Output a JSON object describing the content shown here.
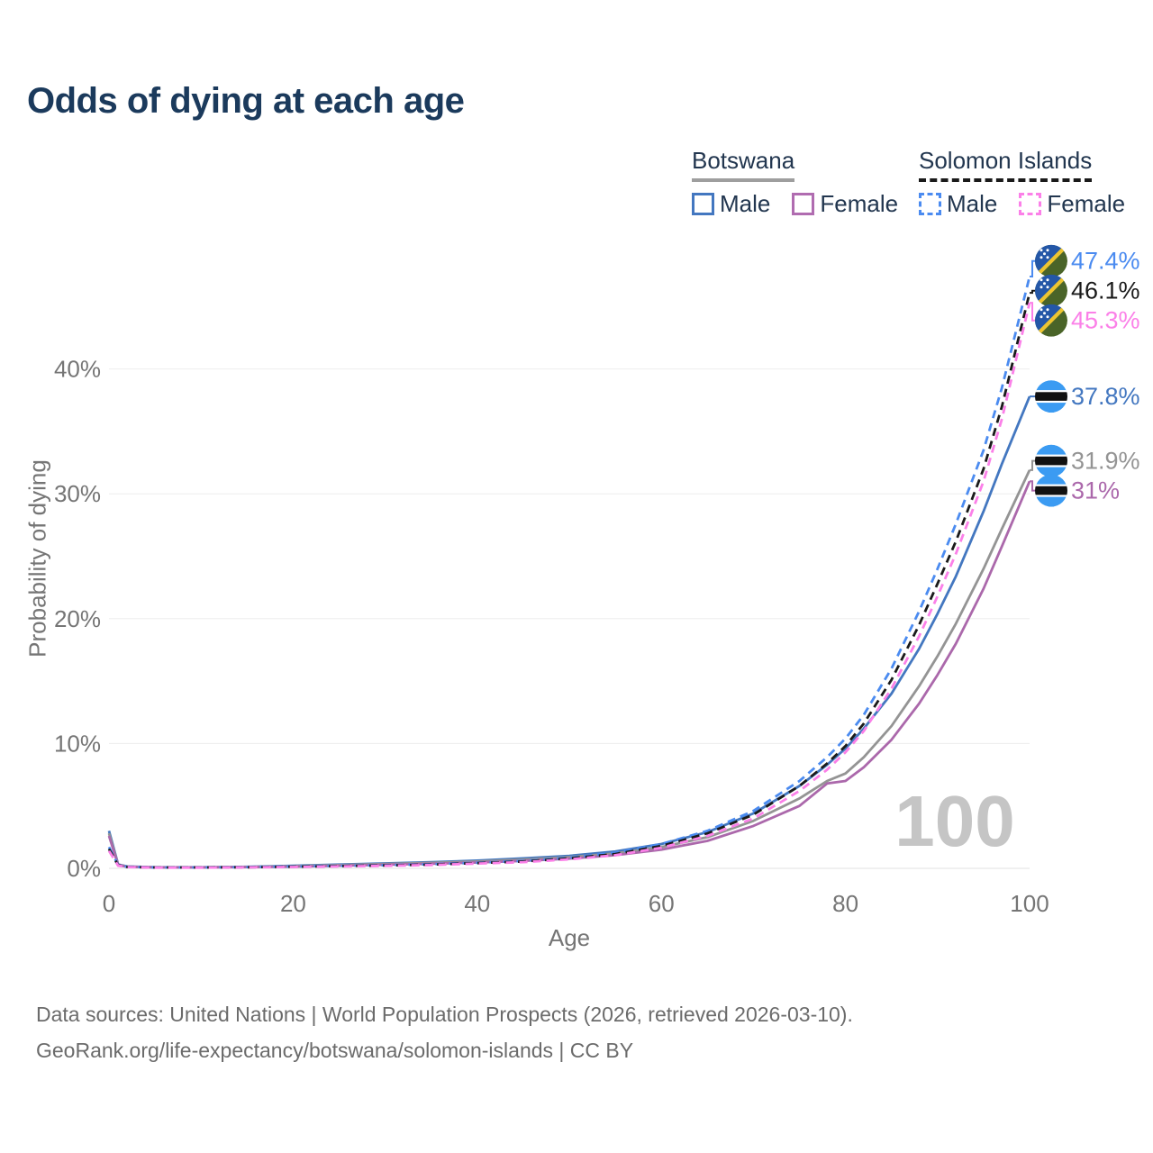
{
  "title": "Odds of dying at each age",
  "legend": {
    "groups": [
      {
        "name": "Botswana",
        "line_style": "solid",
        "underline_color": "#9e9e9e",
        "items": [
          {
            "label": "Male",
            "color": "#4377c0"
          },
          {
            "label": "Female",
            "color": "#b06cb0"
          }
        ]
      },
      {
        "name": "Solomon Islands",
        "line_style": "dashed",
        "underline_color": "#1a1a1a",
        "items": [
          {
            "label": "Male",
            "color": "#4b8bf0"
          },
          {
            "label": "Female",
            "color": "#fb80e8"
          }
        ]
      }
    ]
  },
  "chart_data": {
    "type": "line",
    "title": "Odds of dying at each age",
    "xlabel": "Age",
    "ylabel": "Probability of dying",
    "xlim": [
      0,
      100
    ],
    "ylim": [
      0,
      48
    ],
    "grid": "horizontal",
    "legend_position": "top-right",
    "watermark": "100",
    "x_tick_values": [
      0,
      20,
      40,
      60,
      80,
      100
    ],
    "x_tick_labels": [
      "0",
      "20",
      "40",
      "60",
      "80",
      "100"
    ],
    "y_tick_values": [
      0,
      10,
      20,
      30,
      40
    ],
    "y_tick_labels": [
      "0%",
      "10%",
      "20%",
      "30%",
      "40%"
    ],
    "x": [
      0,
      1,
      2,
      5,
      10,
      15,
      20,
      25,
      30,
      35,
      40,
      45,
      50,
      55,
      60,
      65,
      70,
      75,
      78,
      80,
      82,
      85,
      88,
      90,
      92,
      95,
      97,
      100
    ],
    "series": [
      {
        "id": "botswana-male",
        "country": "Botswana",
        "sex": "Male",
        "color": "#4377c0",
        "line_style": "solid",
        "flag": "botswana",
        "end_label": "37.8%",
        "values": [
          3.0,
          0.3,
          0.15,
          0.09,
          0.09,
          0.12,
          0.2,
          0.3,
          0.4,
          0.5,
          0.62,
          0.8,
          1.0,
          1.35,
          1.95,
          2.9,
          4.4,
          6.6,
          8.3,
          9.6,
          11.2,
          14.0,
          17.6,
          20.4,
          23.4,
          28.6,
          32.4,
          37.8
        ]
      },
      {
        "id": "botswana-both",
        "country": "Botswana",
        "sex": "Both sexes",
        "color": "#949494",
        "line_style": "solid",
        "flag": "botswana",
        "end_label": "31.9%",
        "values": [
          2.8,
          0.28,
          0.14,
          0.08,
          0.08,
          0.11,
          0.17,
          0.26,
          0.35,
          0.44,
          0.55,
          0.7,
          0.9,
          1.2,
          1.7,
          2.5,
          3.8,
          5.6,
          7.0,
          7.6,
          8.9,
          11.4,
          14.6,
          17.0,
          19.6,
          24.0,
          27.2,
          31.9
        ]
      },
      {
        "id": "botswana-female",
        "country": "Botswana",
        "sex": "Female",
        "color": "#ab68ab",
        "line_style": "solid",
        "flag": "botswana",
        "end_label": "31%",
        "values": [
          2.6,
          0.26,
          0.13,
          0.08,
          0.08,
          0.1,
          0.14,
          0.21,
          0.29,
          0.37,
          0.47,
          0.6,
          0.78,
          1.05,
          1.5,
          2.2,
          3.4,
          5.0,
          6.8,
          7.0,
          8.1,
          10.3,
          13.2,
          15.5,
          18.0,
          22.4,
          25.8,
          31.0
        ]
      },
      {
        "id": "solomon-islands-male",
        "country": "Solomon Islands",
        "sex": "Male",
        "color": "#4b8bf0",
        "line_style": "dashed",
        "flag": "solomon-islands",
        "end_label": "47.4%",
        "values": [
          1.7,
          0.25,
          0.12,
          0.07,
          0.07,
          0.1,
          0.15,
          0.2,
          0.25,
          0.33,
          0.45,
          0.6,
          0.85,
          1.25,
          1.95,
          3.0,
          4.6,
          7.0,
          8.9,
          10.4,
          12.3,
          16.0,
          20.6,
          24.0,
          27.6,
          33.5,
          38.5,
          47.4
        ]
      },
      {
        "id": "solomon-islands-both",
        "country": "Solomon Islands",
        "sex": "Both sexes",
        "color": "#1a1a1a",
        "line_style": "dashed",
        "flag": "solomon-islands",
        "end_label": "46.1%",
        "values": [
          1.55,
          0.23,
          0.11,
          0.07,
          0.07,
          0.09,
          0.13,
          0.18,
          0.23,
          0.3,
          0.42,
          0.55,
          0.8,
          1.15,
          1.8,
          2.8,
          4.3,
          6.6,
          8.4,
          9.8,
          11.6,
          15.1,
          19.5,
          22.8,
          26.2,
          32.0,
          37.0,
          46.1
        ]
      },
      {
        "id": "solomon-islands-female",
        "country": "Solomon Islands",
        "sex": "Female",
        "color": "#fb80e8",
        "line_style": "dashed",
        "flag": "solomon-islands",
        "end_label": "45.3%",
        "values": [
          1.4,
          0.21,
          0.1,
          0.06,
          0.06,
          0.08,
          0.11,
          0.15,
          0.2,
          0.27,
          0.38,
          0.5,
          0.72,
          1.05,
          1.65,
          2.6,
          4.0,
          6.2,
          7.9,
          9.3,
          11.0,
          14.4,
          18.6,
          21.8,
          25.2,
          31.0,
          36.0,
          45.3
        ]
      }
    ]
  },
  "footer": {
    "line1": "Data sources: United Nations | World Population Prospects (2026, retrieved 2026-03-10).",
    "line2": "GeoRank.org/life-expectancy/botswana/solomon-islands | CC BY"
  }
}
